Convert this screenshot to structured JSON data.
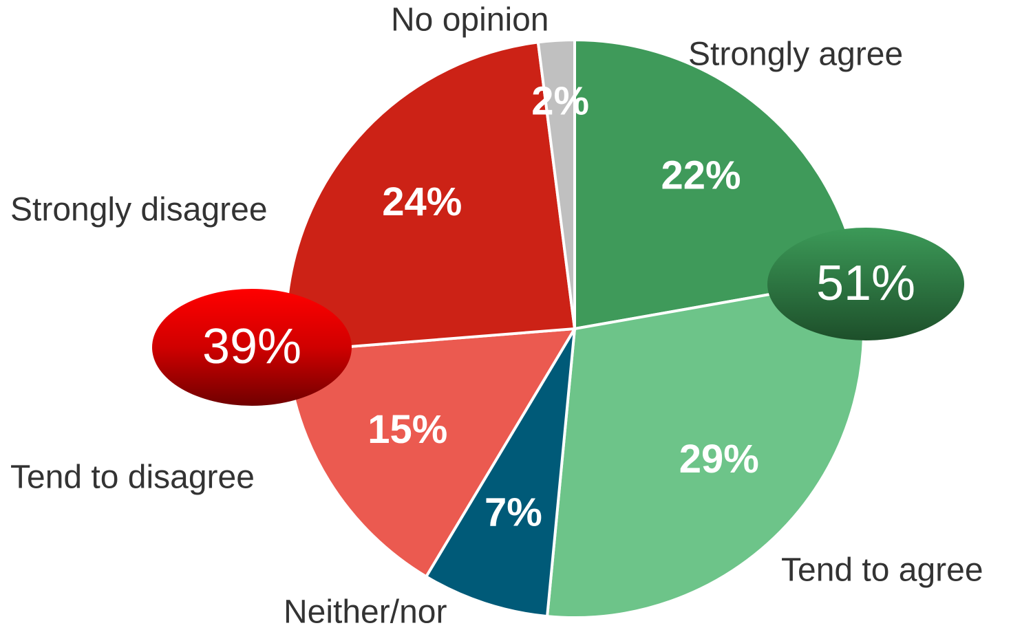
{
  "chart_data": {
    "type": "pie",
    "categories": [
      "Strongly agree",
      "Tend to agree",
      "Neither/nor",
      "Tend to disagree",
      "Strongly disagree",
      "No opinion"
    ],
    "values": [
      22,
      29,
      7,
      15,
      24,
      2
    ],
    "value_labels": [
      "22%",
      "29%",
      "7%",
      "15%",
      "24%",
      "2%"
    ],
    "colors": [
      "#3f9a5a",
      "#6dc489",
      "#005a78",
      "#eb5a50",
      "#cc2216",
      "#c0c0c0"
    ],
    "annotations": [
      {
        "value": 51,
        "label": "51%",
        "color": "#2f7a45"
      },
      {
        "value": 39,
        "label": "39%",
        "color": "#e00000"
      }
    ]
  }
}
